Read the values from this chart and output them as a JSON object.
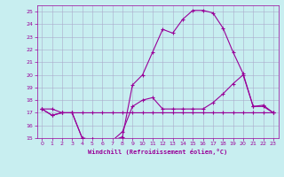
{
  "xlabel": "Windchill (Refroidissement éolien,°C)",
  "bg_color": "#c8eef0",
  "line_color": "#990099",
  "grid_color": "#aaaacc",
  "hours": [
    0,
    1,
    2,
    3,
    4,
    5,
    6,
    7,
    8,
    9,
    10,
    11,
    12,
    13,
    14,
    15,
    16,
    17,
    18,
    19,
    20,
    21,
    22,
    23
  ],
  "temp": [
    17.3,
    16.8,
    17.0,
    17.0,
    15.0,
    14.9,
    14.8,
    14.8,
    15.1,
    19.2,
    20.0,
    21.8,
    23.6,
    23.3,
    24.4,
    25.1,
    25.1,
    24.9,
    23.7,
    21.8,
    20.1,
    17.5,
    17.6,
    17.0
  ],
  "windchill": [
    17.3,
    16.8,
    17.0,
    17.0,
    15.0,
    14.9,
    14.8,
    14.8,
    15.5,
    17.5,
    18.0,
    18.2,
    17.3,
    17.3,
    17.3,
    17.3,
    17.3,
    17.8,
    18.5,
    19.3,
    20.0,
    17.5,
    17.5,
    17.0
  ],
  "line3": [
    17.3,
    17.3,
    17.0,
    17.0,
    17.0,
    17.0,
    17.0,
    17.0,
    17.0,
    17.0,
    17.0,
    17.0,
    17.0,
    17.0,
    17.0,
    17.0,
    17.0,
    17.0,
    17.0,
    17.0,
    17.0,
    17.0,
    17.0,
    17.0
  ],
  "ylim": [
    15,
    25
  ],
  "xlim": [
    0,
    23
  ]
}
